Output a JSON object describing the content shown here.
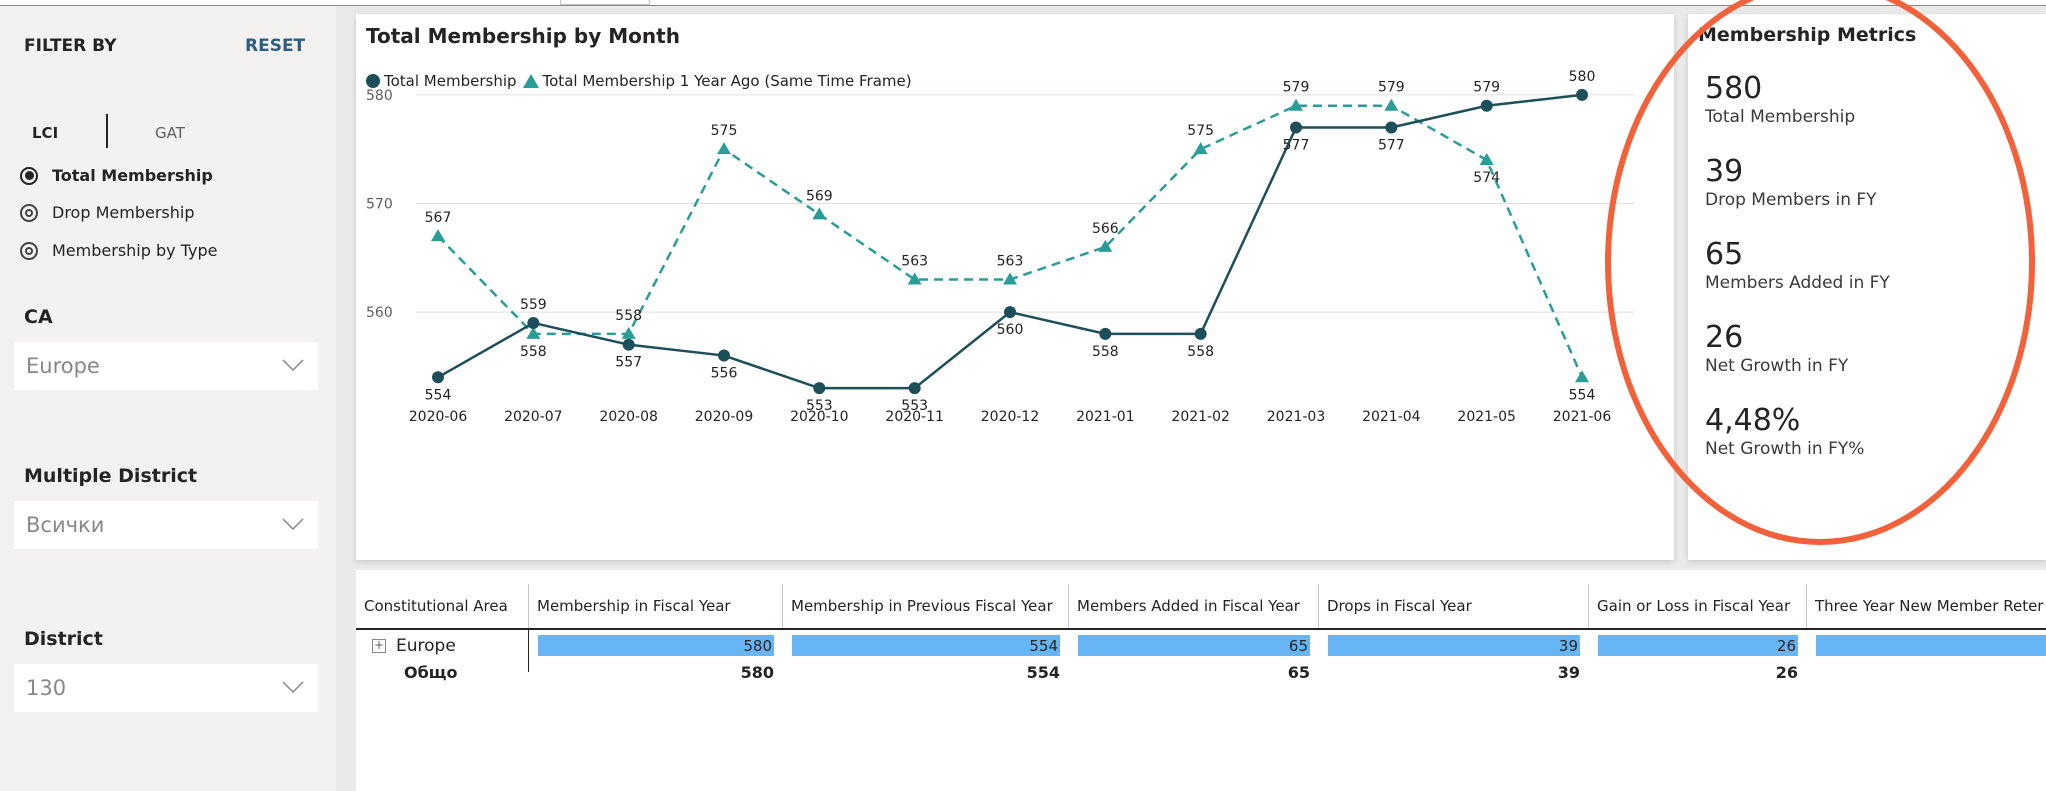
{
  "sidebar": {
    "heading": "FILTER BY",
    "reset": "RESET",
    "toggle": {
      "left": "LCI",
      "right": "GAT"
    },
    "radios": [
      {
        "label": "Total Membership",
        "selected": true
      },
      {
        "label": "Drop Membership",
        "selected": false
      },
      {
        "label": "Membership by Type",
        "selected": false
      }
    ],
    "filters": [
      {
        "label": "CA",
        "value": "Europe"
      },
      {
        "label": "Multiple District",
        "value": "Всички"
      },
      {
        "label": "District",
        "value": "130"
      }
    ]
  },
  "chart_data": {
    "type": "line",
    "title": "Total Membership by Month",
    "categories": [
      "2020-06",
      "2020-07",
      "2020-08",
      "2020-09",
      "2020-10",
      "2020-11",
      "2020-12",
      "2021-01",
      "2021-02",
      "2021-03",
      "2021-04",
      "2021-05",
      "2021-06"
    ],
    "series": [
      {
        "name": "Total Membership",
        "values": [
          554,
          559,
          557,
          556,
          553,
          553,
          560,
          558,
          558,
          577,
          577,
          579,
          580
        ],
        "labels": [
          "554",
          "559",
          "557",
          "556",
          "553",
          "553",
          "560",
          "558",
          "558",
          "577",
          "577",
          "579",
          "580"
        ]
      },
      {
        "name": "Total Membership 1 Year Ago (Same Time Frame)",
        "values": [
          567,
          558,
          558,
          575,
          569,
          563,
          563,
          566,
          575,
          579,
          579,
          574,
          554
        ],
        "labels": [
          "567",
          "558",
          "558",
          "575",
          "569",
          "563",
          "563",
          "566",
          "575",
          "579",
          "579",
          "574",
          "554"
        ]
      }
    ],
    "yticks": [
      "560",
      "570",
      "580"
    ],
    "ylim": [
      552,
      581
    ],
    "colors": {
      "current": "#1d4f5a",
      "previous": "#2a9d98"
    },
    "grid": true,
    "legend": "top-left"
  },
  "metrics": {
    "title": "Membership Metrics",
    "items": [
      {
        "value": "580",
        "label": "Total Membership"
      },
      {
        "value": "39",
        "label": "Drop Members in FY"
      },
      {
        "value": "65",
        "label": "Members Added in FY"
      },
      {
        "value": "26",
        "label": "Net Growth in FY"
      },
      {
        "value": "4,48%",
        "label": "Net Growth in FY%"
      }
    ]
  },
  "table": {
    "headers": [
      "Constitutional Area",
      "Membership in Fiscal Year",
      "Membership in Previous Fiscal Year",
      "Members Added in Fiscal Year",
      "Drops in Fiscal Year",
      "Gain or Loss in Fiscal Year",
      "Three Year New Member Reter"
    ],
    "rows": [
      {
        "name": "Europe",
        "expand": "+",
        "values": [
          "580",
          "554",
          "65",
          "39",
          "26"
        ]
      }
    ],
    "total": {
      "name": "Общо",
      "values": [
        "580",
        "554",
        "65",
        "39",
        "26"
      ]
    }
  }
}
